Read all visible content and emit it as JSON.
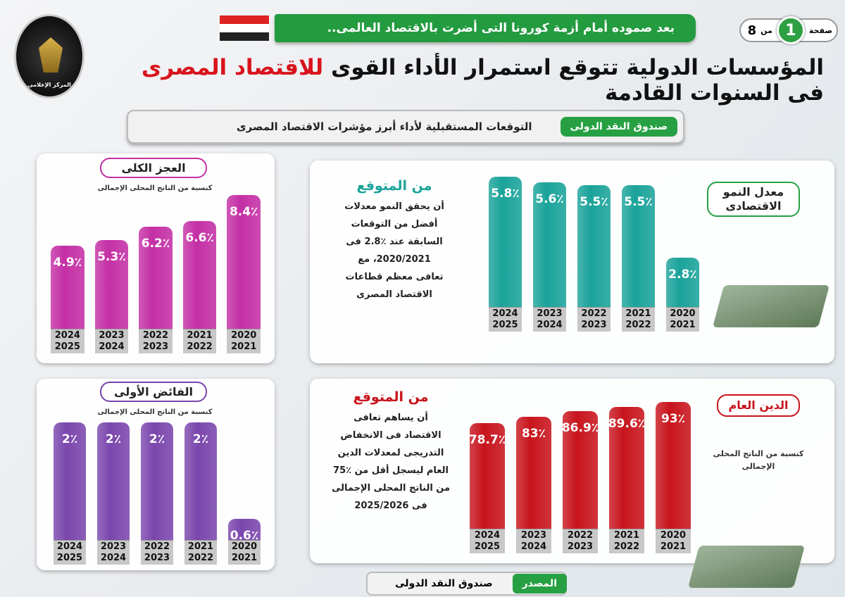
{
  "header": {
    "logo_text": "جمهورية مصر العربية رئاسة مجلس الوزراء المركز الإعلامى",
    "pager": {
      "label": "صفحة",
      "current": "1",
      "of": "من",
      "total": "8"
    },
    "banner": "بعد صموده أمام أزمة كورونا التى أضرت بالاقتصاد العالمى..",
    "title_part1": "المؤسسات الدولية تتوقع استمرار الأداء القوى ",
    "title_highlight": "للاقتصاد المصرى",
    "title_part2": " فى السنوات القادمة",
    "sub_tag": "صندوق النقد الدولى",
    "sub_text": "التوقعات المستقبلية لأداء أبرز مؤشرات الاقتصاد المصرى"
  },
  "colors": {
    "growth": "#1aa39a",
    "deficit": "#c42fa5",
    "surplus": "#7a46ad",
    "debt": "#c8141c",
    "green": "#27a043"
  },
  "growth_panel": {
    "pill": "معدل النمو الاقتصادى",
    "heading": "من المتوقع",
    "text_lines": [
      "أن يحقق النمو معدلات",
      "أفضل من التوقعات",
      "السابقة عند ٪2.8 فى",
      "2020/2021، مع",
      "تعافى معظم قطاعات",
      "الاقتصاد المصرى"
    ]
  },
  "deficit_panel": {
    "pill": "العجز الكلى",
    "note": "كنسبة من الناتج المحلى الإجمالى"
  },
  "surplus_panel": {
    "pill": "الفائض الأولى",
    "note": "كنسبة من الناتج المحلى الإجمالى"
  },
  "debt_panel": {
    "pill": "الدين العام",
    "note": "كنسبة من الناتج المحلى الإجمالى",
    "heading": "من المتوقع",
    "text_lines": [
      "أن يساهم تعافى",
      "الاقتصاد فى الانخفاض",
      "التدريجى لمعدلات الدين",
      "العام ليسجل أقل من ٪75",
      "من الناتج المحلى الإجمالى",
      "فى 2025/2026"
    ]
  },
  "footer": {
    "source_label": "المصدر",
    "source_value": "صندوق النقد الدولى"
  },
  "chart_data": [
    {
      "id": "growth",
      "type": "bar",
      "title": "معدل النمو الاقتصادى",
      "categories": [
        "2020\n2021",
        "2021\n2022",
        "2022\n2023",
        "2023\n2024",
        "2024\n2025"
      ],
      "values": [
        2.8,
        5.5,
        5.5,
        5.6,
        5.8
      ],
      "labels": [
        "2.8٪",
        "5.5٪",
        "5.5٪",
        "5.6٪",
        "5.8٪"
      ],
      "unit": "%"
    },
    {
      "id": "deficit",
      "type": "bar",
      "title": "العجز الكلى",
      "categories": [
        "2020\n2021",
        "2021\n2022",
        "2022\n2023",
        "2023\n2024",
        "2024\n2025"
      ],
      "values": [
        8.4,
        6.6,
        6.2,
        5.3,
        4.9
      ],
      "labels": [
        "8.4٪",
        "6.6٪",
        "6.2٪",
        "5.3٪",
        "4.9٪"
      ],
      "unit": "%"
    },
    {
      "id": "surplus",
      "type": "bar",
      "title": "الفائض الأولى",
      "categories": [
        "2020\n2021",
        "2021\n2022",
        "2022\n2023",
        "2023\n2024",
        "2024\n2025"
      ],
      "values": [
        0.6,
        2,
        2,
        2,
        2
      ],
      "labels": [
        "0.6٪",
        "2٪",
        "2٪",
        "2٪",
        "2٪"
      ],
      "unit": "%"
    },
    {
      "id": "debt",
      "type": "bar",
      "title": "الدين العام",
      "categories": [
        "2020\n2021",
        "2021\n2022",
        "2022\n2023",
        "2023\n2024",
        "2024\n2025"
      ],
      "values": [
        93,
        89.6,
        86.9,
        83,
        78.7
      ],
      "labels": [
        "93٪",
        "89.6٪",
        "86.9٪",
        "83٪",
        "78.7٪"
      ],
      "unit": "%"
    }
  ]
}
